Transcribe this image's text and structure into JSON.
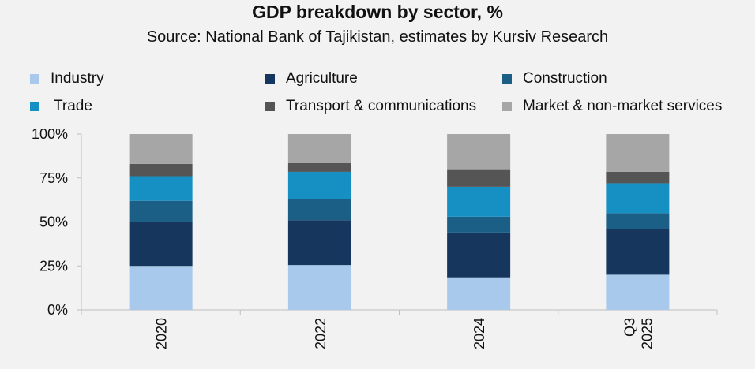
{
  "chart_data": {
    "type": "bar",
    "stacked": true,
    "title": "GDP breakdown by sector, %",
    "subtitle": "Source: National Bank of Tajikistan, estimates by Kursiv Research",
    "categories": [
      [
        "2020"
      ],
      [
        "2022"
      ],
      [
        "2024"
      ],
      [
        "Q3",
        "2025"
      ]
    ],
    "yticks": [
      "0%",
      "25%",
      "50%",
      "75%",
      "100%"
    ],
    "ylim": [
      0,
      100
    ],
    "legend_position": "top",
    "series": [
      {
        "name": "Industry",
        "color": "#a9c9ec",
        "values": [
          25,
          25.5,
          18.5,
          20
        ]
      },
      {
        "name": "Agriculture",
        "color": "#17365d",
        "values": [
          25,
          25.5,
          25.5,
          26
        ]
      },
      {
        "name": "Construction",
        "color": "#1b5f86",
        "values": [
          12,
          12,
          9,
          9
        ]
      },
      {
        "name": "Trade",
        "color": "#168fc3",
        "values": [
          14,
          15.5,
          17,
          17
        ]
      },
      {
        "name": "Transport & communications",
        "color": "#555555",
        "values": [
          7,
          5,
          10,
          6.5
        ]
      },
      {
        "name": "Market & non-market services",
        "color": "#a6a6a6",
        "values": [
          17,
          16.5,
          20,
          21.5
        ]
      }
    ]
  }
}
